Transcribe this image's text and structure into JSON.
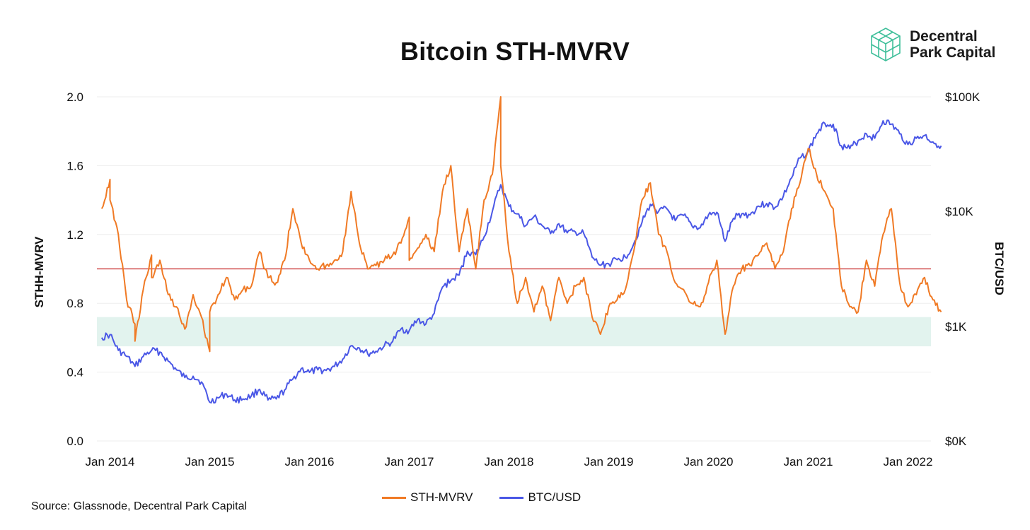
{
  "logo": {
    "line1": "Decentral",
    "line2": "Park Capital",
    "icon": "cube-logo-icon"
  },
  "source": "Source: Glassnode, Decentral Park Capital",
  "colors": {
    "sth": "#f07a25",
    "btc": "#4a57e6",
    "threshold": "#c62828",
    "band": "#e2f3ee",
    "grid": "#eeeeee"
  },
  "chart_data": {
    "type": "line",
    "title": "Bitcoin STH-MVRV",
    "ylabel": "STHH-MVRV",
    "y2label": "BTC/USD",
    "x_ticks": [
      "Jan 2014",
      "Jan 2015",
      "Jan 2016",
      "Jan 2017",
      "Jan 2018",
      "Jan 2019",
      "Jan 2020",
      "Jan 2021",
      "Jan 2022"
    ],
    "y_ticks": [
      "0.0",
      "0.4",
      "0.8",
      "1.2",
      "1.6",
      "2.0"
    ],
    "y2_ticks": [
      "$0K",
      "$1K",
      "$10K",
      "$100K"
    ],
    "ylim": [
      0,
      2.0
    ],
    "y2_scale": "log",
    "grid": true,
    "legend_position": "bottom",
    "threshold_line": 1.0,
    "shaded_band": [
      0.55,
      0.72
    ],
    "series": [
      {
        "name": "STH-MVRV",
        "axis": "left",
        "points": [
          [
            "2013-12",
            1.35
          ],
          [
            "2014-01",
            1.52
          ],
          [
            "2014-01",
            1.4
          ],
          [
            "2014-02",
            1.2
          ],
          [
            "2014-03",
            0.82
          ],
          [
            "2014-04",
            0.68
          ],
          [
            "2014-04",
            0.58
          ],
          [
            "2014-05",
            0.88
          ],
          [
            "2014-06",
            1.08
          ],
          [
            "2014-06",
            0.95
          ],
          [
            "2014-07",
            1.05
          ],
          [
            "2014-08",
            0.85
          ],
          [
            "2014-09",
            0.78
          ],
          [
            "2014-10",
            0.65
          ],
          [
            "2014-11",
            0.85
          ],
          [
            "2014-12",
            0.72
          ],
          [
            "2015-01",
            0.52
          ],
          [
            "2015-01",
            0.75
          ],
          [
            "2015-02",
            0.85
          ],
          [
            "2015-03",
            0.95
          ],
          [
            "2015-04",
            0.82
          ],
          [
            "2015-05",
            0.88
          ],
          [
            "2015-06",
            0.9
          ],
          [
            "2015-07",
            1.1
          ],
          [
            "2015-08",
            0.95
          ],
          [
            "2015-09",
            0.92
          ],
          [
            "2015-10",
            1.05
          ],
          [
            "2015-11",
            1.35
          ],
          [
            "2015-12",
            1.15
          ],
          [
            "2016-01",
            1.05
          ],
          [
            "2016-02",
            1.0
          ],
          [
            "2016-03",
            1.02
          ],
          [
            "2016-04",
            1.05
          ],
          [
            "2016-05",
            1.1
          ],
          [
            "2016-06",
            1.45
          ],
          [
            "2016-07",
            1.15
          ],
          [
            "2016-08",
            1.0
          ],
          [
            "2016-09",
            1.02
          ],
          [
            "2016-10",
            1.05
          ],
          [
            "2016-11",
            1.08
          ],
          [
            "2016-12",
            1.15
          ],
          [
            "2017-01",
            1.3
          ],
          [
            "2017-01",
            1.05
          ],
          [
            "2017-02",
            1.12
          ],
          [
            "2017-03",
            1.2
          ],
          [
            "2017-04",
            1.1
          ],
          [
            "2017-05",
            1.45
          ],
          [
            "2017-06",
            1.6
          ],
          [
            "2017-07",
            1.1
          ],
          [
            "2017-08",
            1.35
          ],
          [
            "2017-09",
            1.0
          ],
          [
            "2017-10",
            1.4
          ],
          [
            "2017-11",
            1.55
          ],
          [
            "2017-12",
            2.0
          ],
          [
            "2017-12",
            1.6
          ],
          [
            "2018-01",
            1.1
          ],
          [
            "2018-02",
            0.8
          ],
          [
            "2018-03",
            0.95
          ],
          [
            "2018-04",
            0.75
          ],
          [
            "2018-05",
            0.9
          ],
          [
            "2018-06",
            0.7
          ],
          [
            "2018-07",
            0.95
          ],
          [
            "2018-08",
            0.8
          ],
          [
            "2018-09",
            0.9
          ],
          [
            "2018-10",
            0.95
          ],
          [
            "2018-11",
            0.72
          ],
          [
            "2018-12",
            0.62
          ],
          [
            "2019-01",
            0.78
          ],
          [
            "2019-02",
            0.82
          ],
          [
            "2019-03",
            0.88
          ],
          [
            "2019-04",
            1.1
          ],
          [
            "2019-05",
            1.4
          ],
          [
            "2019-06",
            1.5
          ],
          [
            "2019-07",
            1.2
          ],
          [
            "2019-08",
            1.1
          ],
          [
            "2019-09",
            0.92
          ],
          [
            "2019-10",
            0.88
          ],
          [
            "2019-11",
            0.8
          ],
          [
            "2019-12",
            0.78
          ],
          [
            "2020-01",
            0.92
          ],
          [
            "2020-02",
            1.05
          ],
          [
            "2020-03",
            0.62
          ],
          [
            "2020-04",
            0.9
          ],
          [
            "2020-05",
            1.0
          ],
          [
            "2020-06",
            1.02
          ],
          [
            "2020-07",
            1.08
          ],
          [
            "2020-08",
            1.15
          ],
          [
            "2020-09",
            1.0
          ],
          [
            "2020-10",
            1.1
          ],
          [
            "2020-11",
            1.35
          ],
          [
            "2020-12",
            1.5
          ],
          [
            "2021-01",
            1.7
          ],
          [
            "2021-02",
            1.55
          ],
          [
            "2021-03",
            1.45
          ],
          [
            "2021-04",
            1.35
          ],
          [
            "2021-05",
            0.9
          ],
          [
            "2021-06",
            0.78
          ],
          [
            "2021-07",
            0.75
          ],
          [
            "2021-08",
            1.05
          ],
          [
            "2021-09",
            0.9
          ],
          [
            "2021-10",
            1.2
          ],
          [
            "2021-11",
            1.35
          ],
          [
            "2021-12",
            0.92
          ],
          [
            "2022-01",
            0.78
          ],
          [
            "2022-02",
            0.85
          ],
          [
            "2022-03",
            0.95
          ],
          [
            "2022-04",
            0.82
          ],
          [
            "2022-05",
            0.75
          ]
        ]
      },
      {
        "name": "BTC/USD",
        "axis": "right",
        "points": [
          [
            "2013-12",
            800
          ],
          [
            "2014-01",
            850
          ],
          [
            "2014-02",
            620
          ],
          [
            "2014-03",
            550
          ],
          [
            "2014-04",
            450
          ],
          [
            "2014-05",
            550
          ],
          [
            "2014-06",
            620
          ],
          [
            "2014-07",
            600
          ],
          [
            "2014-08",
            500
          ],
          [
            "2014-09",
            420
          ],
          [
            "2014-10",
            360
          ],
          [
            "2014-11",
            370
          ],
          [
            "2014-12",
            330
          ],
          [
            "2015-01",
            220
          ],
          [
            "2015-02",
            240
          ],
          [
            "2015-03",
            260
          ],
          [
            "2015-04",
            230
          ],
          [
            "2015-05",
            235
          ],
          [
            "2015-06",
            250
          ],
          [
            "2015-07",
            285
          ],
          [
            "2015-08",
            230
          ],
          [
            "2015-09",
            235
          ],
          [
            "2015-10",
            280
          ],
          [
            "2015-11",
            350
          ],
          [
            "2015-12",
            430
          ],
          [
            "2016-01",
            400
          ],
          [
            "2016-02",
            420
          ],
          [
            "2016-03",
            415
          ],
          [
            "2016-04",
            450
          ],
          [
            "2016-05",
            520
          ],
          [
            "2016-06",
            680
          ],
          [
            "2016-07",
            650
          ],
          [
            "2016-08",
            580
          ],
          [
            "2016-09",
            610
          ],
          [
            "2016-10",
            680
          ],
          [
            "2016-11",
            740
          ],
          [
            "2016-12",
            950
          ],
          [
            "2017-01",
            920
          ],
          [
            "2017-02",
            1150
          ],
          [
            "2017-03",
            1050
          ],
          [
            "2017-04",
            1300
          ],
          [
            "2017-05",
            2200
          ],
          [
            "2017-06",
            2500
          ],
          [
            "2017-07",
            2800
          ],
          [
            "2017-08",
            4500
          ],
          [
            "2017-09",
            4200
          ],
          [
            "2017-10",
            6000
          ],
          [
            "2017-11",
            10000
          ],
          [
            "2017-12",
            17000
          ],
          [
            "2018-01",
            11000
          ],
          [
            "2018-02",
            9500
          ],
          [
            "2018-03",
            7500
          ],
          [
            "2018-04",
            9000
          ],
          [
            "2018-05",
            7500
          ],
          [
            "2018-06",
            6400
          ],
          [
            "2018-07",
            7800
          ],
          [
            "2018-08",
            6500
          ],
          [
            "2018-09",
            6600
          ],
          [
            "2018-10",
            6400
          ],
          [
            "2018-11",
            4000
          ],
          [
            "2018-12",
            3400
          ],
          [
            "2019-01",
            3500
          ],
          [
            "2019-02",
            3800
          ],
          [
            "2019-03",
            4000
          ],
          [
            "2019-04",
            5200
          ],
          [
            "2019-05",
            8000
          ],
          [
            "2019-06",
            11500
          ],
          [
            "2019-07",
            10000
          ],
          [
            "2019-08",
            10500
          ],
          [
            "2019-09",
            8300
          ],
          [
            "2019-10",
            9200
          ],
          [
            "2019-11",
            7500
          ],
          [
            "2019-12",
            7200
          ],
          [
            "2020-01",
            9300
          ],
          [
            "2020-02",
            9800
          ],
          [
            "2020-03",
            5500
          ],
          [
            "2020-04",
            8700
          ],
          [
            "2020-05",
            9500
          ],
          [
            "2020-06",
            9300
          ],
          [
            "2020-07",
            11100
          ],
          [
            "2020-08",
            11700
          ],
          [
            "2020-09",
            10800
          ],
          [
            "2020-10",
            13500
          ],
          [
            "2020-11",
            19500
          ],
          [
            "2020-12",
            29000
          ],
          [
            "2021-01",
            33000
          ],
          [
            "2021-02",
            47000
          ],
          [
            "2021-03",
            58000
          ],
          [
            "2021-04",
            57000
          ],
          [
            "2021-05",
            37000
          ],
          [
            "2021-06",
            35000
          ],
          [
            "2021-07",
            41000
          ],
          [
            "2021-08",
            47000
          ],
          [
            "2021-09",
            43000
          ],
          [
            "2021-10",
            61000
          ],
          [
            "2021-11",
            57000
          ],
          [
            "2021-12",
            47000
          ],
          [
            "2022-01",
            38000
          ],
          [
            "2022-02",
            43000
          ],
          [
            "2022-03",
            45500
          ],
          [
            "2022-04",
            40000
          ],
          [
            "2022-05",
            37000
          ]
        ]
      }
    ]
  }
}
